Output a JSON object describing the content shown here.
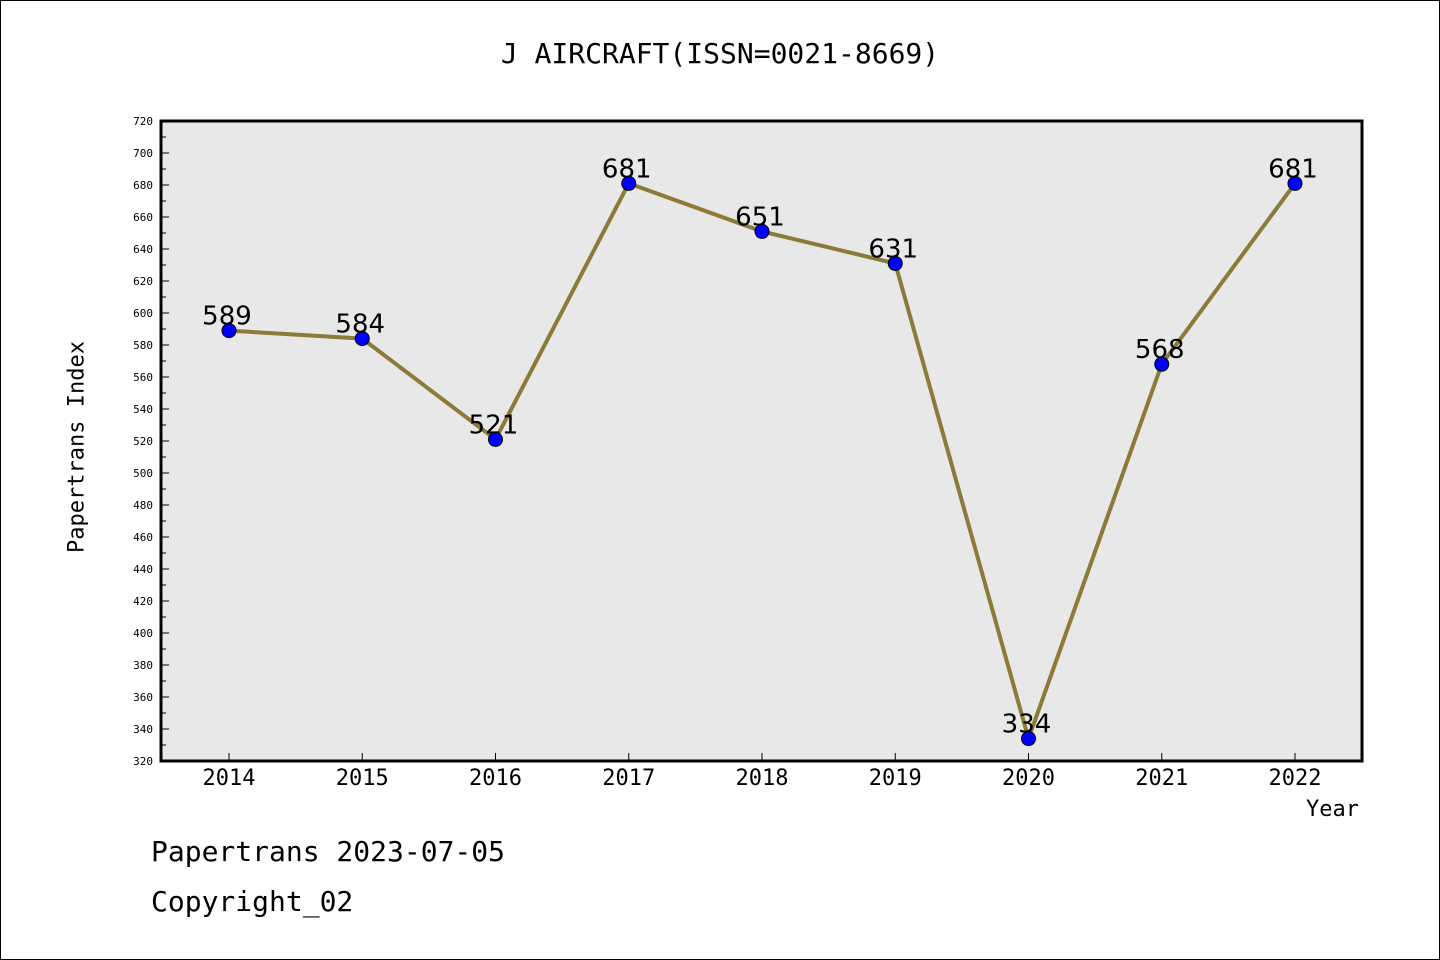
{
  "chart_data": {
    "type": "line",
    "title": "J AIRCRAFT(ISSN=0021-8669)",
    "xlabel": "Year",
    "ylabel": "Papertrans Index",
    "categories": [
      "2014",
      "2015",
      "2016",
      "2017",
      "2018",
      "2019",
      "2020",
      "2021",
      "2022"
    ],
    "series": [
      {
        "values": [
          589,
          584,
          521,
          681,
          651,
          631,
          334,
          568,
          681
        ]
      }
    ],
    "ylim": [
      320,
      720
    ],
    "yticks": [
      320,
      340,
      360,
      380,
      400,
      420,
      440,
      460,
      480,
      500,
      520,
      540,
      560,
      580,
      600,
      620,
      640,
      660,
      680,
      700,
      720
    ],
    "grid": false,
    "colors": {
      "line": "#8c7a38",
      "marker": "#0000ff",
      "plot_bg": "#e8e8e8"
    }
  },
  "footer": {
    "line1": "Papertrans 2023-07-05",
    "line2": "Copyright_02"
  }
}
